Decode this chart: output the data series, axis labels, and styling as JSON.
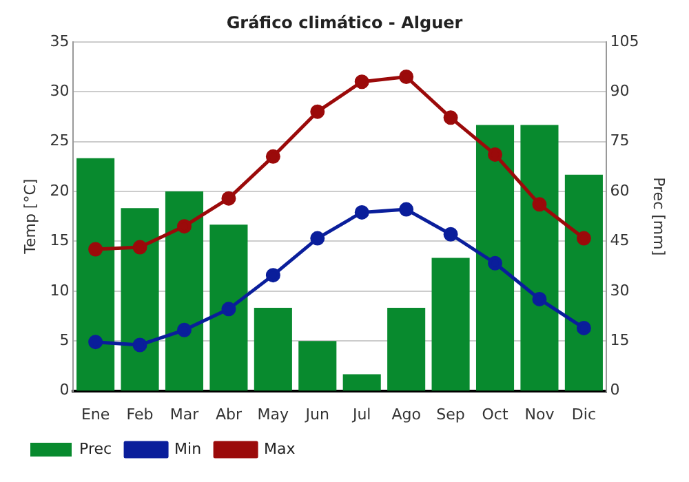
{
  "chart_data": {
    "type": "line",
    "title": "Gráfico climático - Alguer",
    "ylabel": "Temp [°C]",
    "y2label": "Prec [mm]",
    "categories": [
      "Ene",
      "Feb",
      "Mar",
      "Abr",
      "May",
      "Jun",
      "Jul",
      "Ago",
      "Sep",
      "Oct",
      "Nov",
      "Dic"
    ],
    "series": [
      {
        "name": "Prec",
        "type": "bar",
        "axis": "y2",
        "color": "#088a2e",
        "values": [
          70,
          55,
          60,
          50,
          25,
          15,
          5,
          25,
          40,
          80,
          80,
          65
        ]
      },
      {
        "name": "Min",
        "color": "#0a1e9b",
        "values": [
          4.9,
          4.6,
          6.1,
          8.2,
          11.6,
          15.3,
          17.9,
          18.2,
          15.7,
          12.8,
          9.2,
          6.3
        ]
      },
      {
        "name": "Max",
        "color": "#9b0a0a",
        "values": [
          14.2,
          14.4,
          16.5,
          19.3,
          23.5,
          28,
          31,
          31.5,
          27.4,
          23.7,
          18.7,
          15.3
        ]
      }
    ],
    "ylim": [
      0,
      35
    ],
    "yticks": [
      0,
      5,
      10,
      15,
      20,
      25,
      30,
      35
    ],
    "y2lim": [
      0,
      105
    ],
    "y2ticks": [
      0,
      15,
      30,
      45,
      60,
      75,
      90,
      105
    ],
    "grid": "y",
    "legend": "bottom left",
    "marker": "circle",
    "line_style": "solid"
  }
}
